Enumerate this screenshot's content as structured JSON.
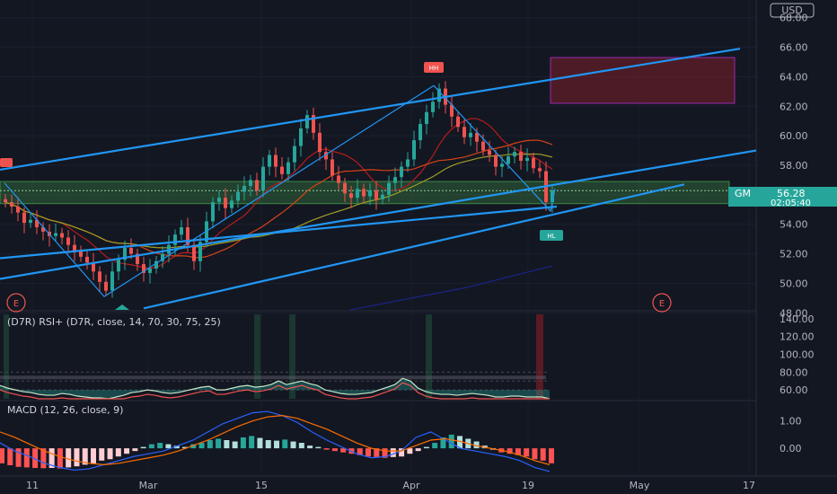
{
  "currency": "USD",
  "price_badge": {
    "symbol": "GM",
    "price": "56.28",
    "countdown": "02:05:40",
    "color": "#26a69a"
  },
  "markers": {
    "higher_high": "HH",
    "higher_low": "HL",
    "earnings": "E"
  },
  "rsi": {
    "label": "(D7R) RSI+ (D7R, close, 14, 70, 30, 75, 25)"
  },
  "macd": {
    "label": "MACD (12, 26, close, 9)"
  },
  "colors": {
    "up": "#26a69a",
    "down": "#ef5350",
    "trend": "#2196f3",
    "support_zone": "#4caf50",
    "target_zone": "#9c27b0"
  },
  "chart_data": [
    {
      "type": "candlestick",
      "x_ticks": [
        "11",
        "Mar",
        "15",
        "Apr",
        "19",
        "May",
        "17"
      ],
      "y_ticks": [
        "48.00",
        "50.00",
        "52.00",
        "54.00",
        "56.00",
        "58.00",
        "60.00",
        "62.00",
        "64.00",
        "66.00",
        "68.00"
      ],
      "ylim": [
        48.2,
        69.2
      ],
      "close": [
        55.5,
        55.2,
        54.8,
        54.1,
        54.3,
        53.8,
        53.5,
        53.2,
        53.4,
        53.1,
        52.6,
        52.2,
        51.8,
        51.4,
        50.8,
        50.1,
        49.5,
        50.8,
        51.6,
        52.4,
        52.0,
        51.3,
        50.7,
        51.0,
        51.5,
        52.0,
        52.6,
        53.3,
        53.8,
        52.6,
        51.5,
        52.8,
        54.2,
        55.5,
        55.8,
        55.1,
        55.6,
        56.2,
        56.6,
        57.0,
        56.3,
        57.9,
        58.7,
        57.9,
        57.4,
        58.2,
        59.3,
        60.5,
        61.4,
        60.2,
        58.9,
        58.4,
        57.3,
        56.8,
        56.1,
        55.8,
        56.4,
        55.9,
        56.3,
        55.7,
        56.0,
        56.8,
        57.2,
        57.9,
        58.4,
        59.7,
        60.8,
        61.6,
        62.3,
        63.2,
        62.1,
        61.3,
        60.6,
        59.9,
        60.2,
        59.6,
        59.0,
        58.7,
        57.9,
        58.1,
        58.6,
        58.9,
        58.3,
        58.5,
        57.8,
        57.6,
        55.5,
        56.28
      ],
      "rsi_values": [
        65,
        62,
        60,
        58,
        57,
        55,
        54,
        54,
        56,
        55,
        53,
        52,
        51,
        51,
        50,
        52,
        54,
        57,
        58,
        60,
        59,
        57,
        56,
        57,
        59,
        61,
        63,
        64,
        60,
        60,
        62,
        64,
        65,
        63,
        64,
        66,
        70,
        66,
        68,
        70,
        67,
        65,
        60,
        58,
        56,
        55,
        55,
        56,
        57,
        60,
        63,
        66,
        73,
        70,
        62,
        58,
        56,
        55,
        55,
        54,
        55,
        56,
        55,
        54,
        52,
        52,
        53,
        53,
        52,
        52,
        52,
        50
      ],
      "rsi_levels": [
        80,
        70,
        60
      ],
      "macd_hist": [
        -0.55,
        -0.62,
        -0.68,
        -0.7,
        -0.72,
        -0.73,
        -0.72,
        -0.74,
        -0.7,
        -0.66,
        -0.6,
        -0.55,
        -0.45,
        -0.4,
        -0.3,
        -0.2,
        -0.1,
        0.05,
        0.15,
        0.2,
        0.15,
        0.1,
        0.05,
        0.15,
        0.2,
        0.3,
        0.35,
        0.3,
        0.25,
        0.4,
        0.45,
        0.38,
        0.3,
        0.28,
        0.32,
        0.25,
        0.2,
        0.1,
        0.05,
        -0.05,
        -0.1,
        -0.15,
        -0.2,
        -0.25,
        -0.3,
        -0.32,
        -0.35,
        -0.32,
        -0.3,
        -0.2,
        -0.1,
        0.05,
        0.2,
        0.4,
        0.5,
        0.45,
        0.35,
        0.25,
        0.1,
        -0.05,
        -0.15,
        -0.2,
        -0.25,
        -0.3,
        -0.4,
        -0.45,
        -0.55
      ],
      "macd_ticks": [
        "1.00",
        "0.00"
      ],
      "rsi_ticks": [
        "140.00",
        "120.00",
        "100.00",
        "80.00",
        "60.00"
      ]
    }
  ]
}
